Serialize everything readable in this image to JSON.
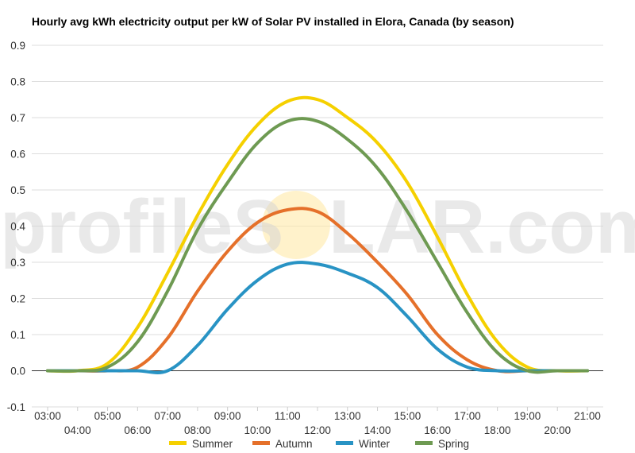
{
  "watermark": {
    "pre": "profileS",
    "post": "LAR.com",
    "sun_color": "#ffe9a8"
  },
  "chart_data": {
    "type": "line",
    "title": "Hourly avg kWh electricity output per kW of Solar PV installed in Elora, Canada (by season)",
    "xlabel": "",
    "ylabel": "",
    "xlim": [
      3,
      21
    ],
    "ylim": [
      -0.1,
      0.9
    ],
    "y_ticks": [
      -0.1,
      0.0,
      0.1,
      0.2,
      0.3,
      0.4,
      0.5,
      0.6,
      0.7,
      0.8,
      0.9
    ],
    "y_tick_labels": [
      "-0.1",
      "0.0",
      "0.1",
      "0.2",
      "0.3",
      "0.4",
      "0.5",
      "0.6",
      "0.7",
      "0.8",
      "0.9"
    ],
    "x_ticks": [
      3,
      4,
      5,
      6,
      7,
      8,
      9,
      10,
      11,
      12,
      13,
      14,
      15,
      16,
      17,
      18,
      19,
      20,
      21
    ],
    "x_tick_labels": [
      "03:00",
      "04:00",
      "05:00",
      "06:00",
      "07:00",
      "08:00",
      "09:00",
      "10:00",
      "11:00",
      "12:00",
      "13:00",
      "14:00",
      "15:00",
      "16:00",
      "17:00",
      "18:00",
      "19:00",
      "20:00",
      "21:00"
    ],
    "grid": true,
    "legend_position": "bottom",
    "x": [
      3,
      4,
      5,
      6,
      7,
      8,
      9,
      10,
      11,
      12,
      13,
      14,
      15,
      16,
      17,
      18,
      19,
      20,
      21
    ],
    "series": [
      {
        "name": "Summer",
        "color": "#f5d000",
        "values": [
          0.0,
          0.0,
          0.02,
          0.12,
          0.27,
          0.43,
          0.57,
          0.68,
          0.745,
          0.75,
          0.7,
          0.63,
          0.52,
          0.37,
          0.21,
          0.08,
          0.01,
          0.0,
          0.0
        ]
      },
      {
        "name": "Autumn",
        "color": "#e5702a",
        "values": [
          0.0,
          0.0,
          0.0,
          0.01,
          0.09,
          0.22,
          0.33,
          0.41,
          0.445,
          0.44,
          0.38,
          0.3,
          0.21,
          0.1,
          0.03,
          0.0,
          0.0,
          0.0,
          0.0
        ]
      },
      {
        "name": "Winter",
        "color": "#2893c4",
        "values": [
          0.0,
          0.0,
          0.0,
          0.0,
          0.0,
          0.07,
          0.17,
          0.25,
          0.295,
          0.295,
          0.27,
          0.23,
          0.15,
          0.06,
          0.01,
          0.0,
          0.0,
          0.0,
          0.0
        ]
      },
      {
        "name": "Spring",
        "color": "#6e9a52",
        "values": [
          0.0,
          0.0,
          0.01,
          0.08,
          0.22,
          0.39,
          0.52,
          0.63,
          0.69,
          0.69,
          0.64,
          0.56,
          0.44,
          0.3,
          0.16,
          0.05,
          0.0,
          0.0,
          0.0
        ]
      }
    ]
  }
}
